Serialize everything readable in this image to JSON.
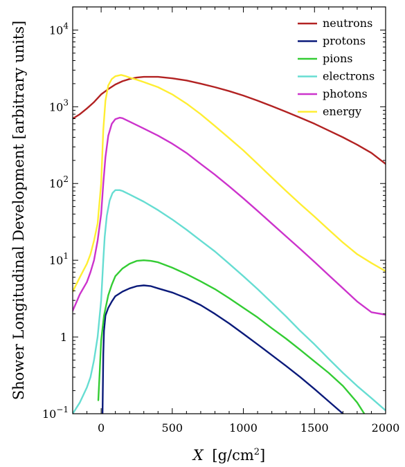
{
  "chart_data": {
    "type": "line",
    "title": "",
    "xlabel_var": "X",
    "xlabel_unit_prefix": "[g/cm",
    "xlabel_unit_sup": "2",
    "xlabel_unit_suffix": "]",
    "ylabel": "Shower Longitudinal Development [arbitrary units]",
    "xlim": [
      -200,
      2000
    ],
    "ylim": [
      0.1,
      20000
    ],
    "yscale": "log",
    "grid": false,
    "legend_position": "top-right",
    "x_ticks": [
      {
        "value": 0,
        "label": "0"
      },
      {
        "value": 500,
        "label": "500"
      },
      {
        "value": 1000,
        "label": "1000"
      },
      {
        "value": 1500,
        "label": "1500"
      },
      {
        "value": 2000,
        "label": "2000"
      }
    ],
    "y_ticks": [
      {
        "value": 0.1,
        "base": "10",
        "exp": "−1"
      },
      {
        "value": 1,
        "base": "1",
        "exp": ""
      },
      {
        "value": 10,
        "base": "10",
        "exp": "1"
      },
      {
        "value": 100,
        "base": "10",
        "exp": "2"
      },
      {
        "value": 1000,
        "base": "10",
        "exp": "3"
      },
      {
        "value": 10000,
        "base": "10",
        "exp": "4"
      }
    ],
    "series": [
      {
        "name": "neutrons",
        "color": "#b22222",
        "points": [
          [
            -200,
            700
          ],
          [
            -150,
            800
          ],
          [
            -100,
            950
          ],
          [
            -50,
            1150
          ],
          [
            0,
            1450
          ],
          [
            50,
            1700
          ],
          [
            100,
            1950
          ],
          [
            150,
            2150
          ],
          [
            200,
            2300
          ],
          [
            250,
            2400
          ],
          [
            300,
            2450
          ],
          [
            400,
            2450
          ],
          [
            500,
            2350
          ],
          [
            600,
            2200
          ],
          [
            700,
            2000
          ],
          [
            800,
            1800
          ],
          [
            900,
            1600
          ],
          [
            1000,
            1400
          ],
          [
            1100,
            1200
          ],
          [
            1200,
            1020
          ],
          [
            1300,
            860
          ],
          [
            1400,
            720
          ],
          [
            1500,
            600
          ],
          [
            1600,
            490
          ],
          [
            1700,
            400
          ],
          [
            1800,
            320
          ],
          [
            1900,
            250
          ],
          [
            2000,
            180
          ]
        ]
      },
      {
        "name": "protons",
        "color": "#0a1a7a",
        "points": [
          [
            10,
            0.1
          ],
          [
            15,
            0.6
          ],
          [
            20,
            1.2
          ],
          [
            30,
            1.9
          ],
          [
            50,
            2.4
          ],
          [
            75,
            2.9
          ],
          [
            100,
            3.4
          ],
          [
            150,
            3.9
          ],
          [
            200,
            4.3
          ],
          [
            250,
            4.6
          ],
          [
            300,
            4.7
          ],
          [
            350,
            4.6
          ],
          [
            400,
            4.3
          ],
          [
            500,
            3.8
          ],
          [
            600,
            3.2
          ],
          [
            700,
            2.6
          ],
          [
            800,
            2.0
          ],
          [
            900,
            1.5
          ],
          [
            1000,
            1.1
          ],
          [
            1100,
            0.8
          ],
          [
            1200,
            0.58
          ],
          [
            1300,
            0.42
          ],
          [
            1400,
            0.3
          ],
          [
            1500,
            0.21
          ],
          [
            1600,
            0.145
          ],
          [
            1700,
            0.1
          ]
        ]
      },
      {
        "name": "pions",
        "color": "#33cc33",
        "points": [
          [
            -20,
            0.15
          ],
          [
            -10,
            0.35
          ],
          [
            0,
            0.9
          ],
          [
            20,
            1.9
          ],
          [
            50,
            3.5
          ],
          [
            75,
            4.8
          ],
          [
            100,
            6.2
          ],
          [
            150,
            7.8
          ],
          [
            200,
            9.0
          ],
          [
            250,
            9.8
          ],
          [
            300,
            10.0
          ],
          [
            350,
            9.8
          ],
          [
            400,
            9.4
          ],
          [
            500,
            8.0
          ],
          [
            600,
            6.6
          ],
          [
            700,
            5.3
          ],
          [
            800,
            4.2
          ],
          [
            900,
            3.2
          ],
          [
            1000,
            2.4
          ],
          [
            1100,
            1.8
          ],
          [
            1200,
            1.3
          ],
          [
            1300,
            0.95
          ],
          [
            1400,
            0.68
          ],
          [
            1500,
            0.48
          ],
          [
            1600,
            0.34
          ],
          [
            1700,
            0.23
          ],
          [
            1800,
            0.14
          ],
          [
            1850,
            0.1
          ]
        ]
      },
      {
        "name": "electrons",
        "color": "#66ddd2",
        "points": [
          [
            -200,
            0.1
          ],
          [
            -150,
            0.14
          ],
          [
            -100,
            0.22
          ],
          [
            -75,
            0.3
          ],
          [
            -50,
            0.5
          ],
          [
            -25,
            1.0
          ],
          [
            0,
            3
          ],
          [
            15,
            10
          ],
          [
            25,
            20
          ],
          [
            40,
            38
          ],
          [
            60,
            60
          ],
          [
            80,
            75
          ],
          [
            100,
            82
          ],
          [
            130,
            82
          ],
          [
            150,
            80
          ],
          [
            200,
            72
          ],
          [
            300,
            58
          ],
          [
            400,
            45
          ],
          [
            500,
            34
          ],
          [
            600,
            25
          ],
          [
            700,
            18
          ],
          [
            800,
            13
          ],
          [
            900,
            9
          ],
          [
            1000,
            6.2
          ],
          [
            1100,
            4.2
          ],
          [
            1200,
            2.8
          ],
          [
            1300,
            1.85
          ],
          [
            1400,
            1.2
          ],
          [
            1500,
            0.8
          ],
          [
            1600,
            0.52
          ],
          [
            1700,
            0.34
          ],
          [
            1800,
            0.23
          ],
          [
            1900,
            0.16
          ],
          [
            2000,
            0.11
          ]
        ]
      },
      {
        "name": "photons",
        "color": "#cc33cc",
        "points": [
          [
            -200,
            2.2
          ],
          [
            -175,
            2.8
          ],
          [
            -150,
            3.6
          ],
          [
            -100,
            5.2
          ],
          [
            -75,
            7
          ],
          [
            -50,
            10
          ],
          [
            -25,
            18
          ],
          [
            0,
            40
          ],
          [
            15,
            100
          ],
          [
            30,
            220
          ],
          [
            50,
            420
          ],
          [
            75,
            600
          ],
          [
            100,
            690
          ],
          [
            130,
            720
          ],
          [
            150,
            710
          ],
          [
            200,
            640
          ],
          [
            300,
            520
          ],
          [
            400,
            420
          ],
          [
            500,
            330
          ],
          [
            600,
            250
          ],
          [
            700,
            180
          ],
          [
            800,
            130
          ],
          [
            900,
            92
          ],
          [
            1000,
            64
          ],
          [
            1100,
            44
          ],
          [
            1200,
            30
          ],
          [
            1300,
            20.5
          ],
          [
            1400,
            14
          ],
          [
            1500,
            9.5
          ],
          [
            1600,
            6.4
          ],
          [
            1700,
            4.3
          ],
          [
            1800,
            2.9
          ],
          [
            1900,
            2.1
          ],
          [
            2000,
            1.95
          ]
        ]
      },
      {
        "name": "energy",
        "color": "#ffee33",
        "points": [
          [
            -200,
            3.9
          ],
          [
            -150,
            6
          ],
          [
            -100,
            9
          ],
          [
            -75,
            12
          ],
          [
            -50,
            18
          ],
          [
            -25,
            30
          ],
          [
            0,
            100
          ],
          [
            15,
            500
          ],
          [
            30,
            1200
          ],
          [
            50,
            1900
          ],
          [
            75,
            2300
          ],
          [
            100,
            2500
          ],
          [
            140,
            2600
          ],
          [
            175,
            2500
          ],
          [
            200,
            2400
          ],
          [
            250,
            2250
          ],
          [
            300,
            2100
          ],
          [
            400,
            1800
          ],
          [
            500,
            1450
          ],
          [
            600,
            1100
          ],
          [
            700,
            800
          ],
          [
            800,
            560
          ],
          [
            900,
            390
          ],
          [
            1000,
            270
          ],
          [
            1100,
            180
          ],
          [
            1200,
            120
          ],
          [
            1300,
            80
          ],
          [
            1400,
            54
          ],
          [
            1500,
            37
          ],
          [
            1600,
            25
          ],
          [
            1700,
            17
          ],
          [
            1800,
            12
          ],
          [
            1900,
            9.2
          ],
          [
            2000,
            7.2
          ]
        ]
      }
    ]
  }
}
